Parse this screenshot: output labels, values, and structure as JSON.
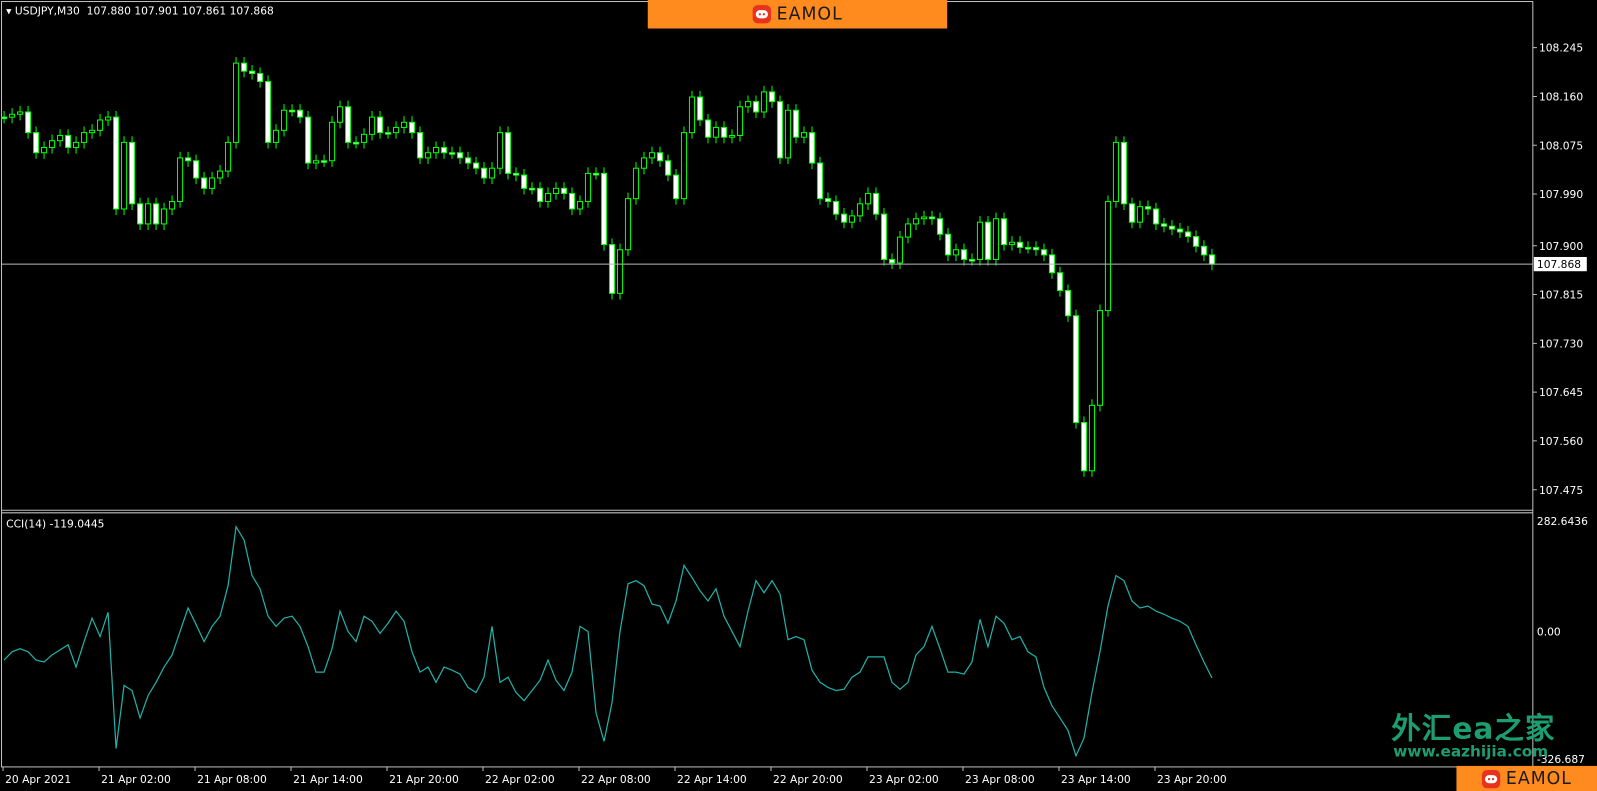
{
  "header": {
    "symbol": "USDJPY,M30",
    "open": "107.880",
    "high": "107.901",
    "low": "107.861",
    "close": "107.868"
  },
  "indicator": {
    "label": "CCI(14) -119.0445",
    "axis_labels": [
      {
        "text": "282.6436",
        "value": 282.6436
      },
      {
        "text": "0.00",
        "value": 0
      },
      {
        "text": "-326.687",
        "value": -326.687
      }
    ]
  },
  "price_axis": {
    "labels": [
      "108.245",
      "108.160",
      "108.075",
      "107.990",
      "107.900",
      "107.815",
      "107.730",
      "107.645",
      "107.560",
      "107.475"
    ],
    "current_price": "107.868"
  },
  "time_axis": {
    "labels": [
      "20 Apr 2021",
      "21 Apr 02:00",
      "21 Apr 08:00",
      "21 Apr 14:00",
      "21 Apr 20:00",
      "22 Apr 02:00",
      "22 Apr 08:00",
      "22 Apr 14:00",
      "22 Apr 20:00",
      "23 Apr 02:00",
      "23 Apr 08:00",
      "23 Apr 14:00",
      "23 Apr 20:00"
    ]
  },
  "branding": {
    "logo_text": "EAMOL",
    "watermark_cn": "外汇ea之家",
    "watermark_url": "www.eazhijia.com"
  },
  "colors": {
    "background": "#000000",
    "candle": "#00ff00",
    "bear_body": "#ffffff",
    "bull_body": "#000000",
    "cci_line": "#20b2aa",
    "axis": "#c0c0c0",
    "banner": "#ff8a1e"
  },
  "chart_data": [
    {
      "type": "candlestick",
      "title": "USDJPY,M30",
      "timeframe_minutes": 30,
      "ylim": [
        107.46,
        108.29
      ],
      "close": [
        108.124,
        108.129,
        108.133,
        108.097,
        108.062,
        108.071,
        108.083,
        108.092,
        108.071,
        108.08,
        108.097,
        108.101,
        108.119,
        108.124,
        107.964,
        108.08,
        107.973,
        107.938,
        107.973,
        107.938,
        107.964,
        107.977,
        108.053,
        108.048,
        108.018,
        108.0,
        108.018,
        108.03,
        108.08,
        108.218,
        108.204,
        108.2,
        108.186,
        108.08,
        108.101,
        108.136,
        108.136,
        108.124,
        108.044,
        108.048,
        108.048,
        108.115,
        108.142,
        108.08,
        108.08,
        108.094,
        108.124,
        108.097,
        108.097,
        108.106,
        108.115,
        108.097,
        108.053,
        108.062,
        108.071,
        108.062,
        108.062,
        108.053,
        108.044,
        108.035,
        108.018,
        108.035,
        108.097,
        108.026,
        108.023,
        108.0,
        108.0,
        107.977,
        107.991,
        108.0,
        107.991,
        107.964,
        107.977,
        108.026,
        108.026,
        107.902,
        107.817,
        107.893,
        107.982,
        108.035,
        108.053,
        108.062,
        108.048,
        108.023,
        107.982,
        108.097,
        108.159,
        108.119,
        108.089,
        108.106,
        108.089,
        108.092,
        108.142,
        108.151,
        108.133,
        108.168,
        108.151,
        108.053,
        108.136,
        108.089,
        108.097,
        108.044,
        107.982,
        107.977,
        107.955,
        107.941,
        107.952,
        107.973,
        107.991,
        107.955,
        107.876,
        107.87,
        107.915,
        107.938,
        107.947,
        107.95,
        107.947,
        107.92,
        107.884,
        107.893,
        107.876,
        107.876,
        107.941,
        107.876,
        107.947,
        107.902,
        107.906,
        107.897,
        107.897,
        107.893,
        107.884,
        107.853,
        107.822,
        107.778,
        107.592,
        107.508,
        107.622,
        107.787,
        107.977,
        108.08,
        107.973,
        107.941,
        107.968,
        107.964,
        107.938,
        107.934,
        107.929,
        107.924,
        107.916,
        107.899,
        107.884,
        107.868
      ]
    },
    {
      "type": "line",
      "title": "CCI(14)",
      "ylim": [
        -326.687,
        282.6436
      ],
      "values": [
        -73,
        -52,
        -44,
        -52,
        -73,
        -78,
        -60,
        -47,
        -34,
        -91,
        -26,
        34,
        -13,
        49,
        -299,
        -138,
        -151,
        -221,
        -164,
        -130,
        -91,
        -60,
        0,
        60,
        18,
        -26,
        13,
        39,
        117,
        268,
        234,
        143,
        109,
        39,
        13,
        34,
        39,
        13,
        -39,
        -104,
        -104,
        -44,
        52,
        0,
        -26,
        39,
        26,
        -5,
        21,
        52,
        26,
        -52,
        -104,
        -91,
        -130,
        -91,
        -99,
        -109,
        -143,
        -156,
        -117,
        13,
        -130,
        -117,
        -156,
        -177,
        -151,
        -125,
        -73,
        -125,
        -151,
        -104,
        13,
        0,
        -208,
        -281,
        -182,
        0,
        122,
        130,
        117,
        70,
        65,
        21,
        78,
        169,
        138,
        104,
        78,
        109,
        39,
        0,
        -39,
        52,
        130,
        99,
        130,
        96,
        -21,
        -13,
        -21,
        -99,
        -130,
        -143,
        -151,
        -148,
        -117,
        -104,
        -65,
        -65,
        -65,
        -130,
        -148,
        -130,
        -60,
        -39,
        13,
        -44,
        -104,
        -104,
        -109,
        -78,
        31,
        -39,
        39,
        21,
        -21,
        -13,
        -52,
        -65,
        -143,
        -190,
        -221,
        -253,
        -318,
        -273,
        -156,
        -52,
        65,
        143,
        130,
        78,
        60,
        65,
        52,
        44,
        34,
        26,
        13,
        -34,
        -78,
        -119.0445
      ]
    }
  ]
}
